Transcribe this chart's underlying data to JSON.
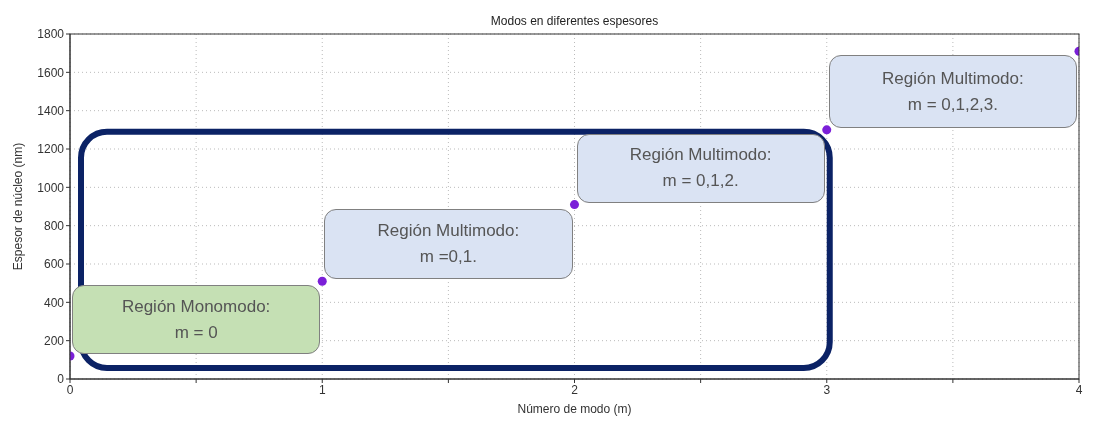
{
  "chart_data": {
    "type": "scatter",
    "title": "Modos en diferentes espesores",
    "xlabel": "Número de modo (m)",
    "ylabel": "Espesor de núcleo (nm)",
    "x": [
      0,
      1,
      2,
      3,
      4
    ],
    "series": [
      {
        "color": "#7b1fd8",
        "values": [
          120,
          510,
          910,
          1300,
          1710
        ]
      }
    ],
    "xlim": [
      0,
      4
    ],
    "xticks": [
      0,
      {
        "value": 0.5,
        "label": null
      },
      1,
      {
        "value": 1.5,
        "label": null
      },
      2,
      {
        "value": 2.5,
        "label": null
      },
      3,
      {
        "value": 3.5,
        "label": null
      },
      4
    ],
    "ylim": [
      0,
      1800
    ],
    "yticks": [
      0,
      200,
      400,
      600,
      800,
      1000,
      1200,
      1400,
      1600,
      1800
    ],
    "grid": true,
    "marker": "circle",
    "annotations": [
      "Región Monomodo:\nm = 0",
      "Región Multimodo:\nm =0,1.",
      "Región Multimodo:\nm = 0,1,2.",
      "Región Multimodo:\nm = 0,1,2,3."
    ]
  }
}
